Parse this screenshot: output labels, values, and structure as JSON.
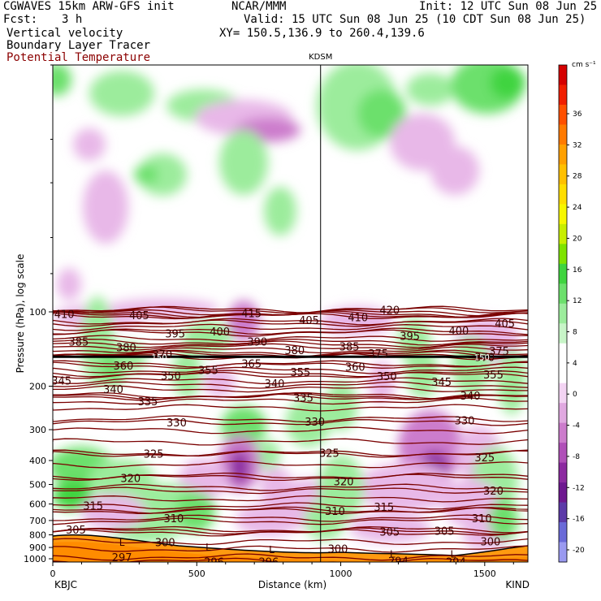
{
  "header": {
    "model": "CGWAVES 15km ARW-GFS init",
    "org": "NCAR/MMM",
    "init": "Init: 12 UTC Sun 08 Jun 25",
    "fcst_label": "Fcst:",
    "fcst_value": "3 h",
    "valid": "Valid: 15 UTC Sun 08 Jun 25 (10 CDT Sun 08 Jun 25)",
    "xy": "XY= 150.5,136.9 to 260.4,139.6",
    "fields": [
      {
        "label": "Vertical velocity",
        "color": "#000000"
      },
      {
        "label": "Boundary Layer Tracer",
        "color": "#000000"
      },
      {
        "label": "Potential Temperature",
        "color": "#8b0000"
      }
    ]
  },
  "chart_data": {
    "type": "heatmap",
    "title": "KDSM",
    "xlabel": "Distance (km)",
    "ylabel": "Pressure (hPa), log scale",
    "xlim": [
      0,
      1650
    ],
    "x_ticks": [
      0,
      500,
      1000,
      1500
    ],
    "x_tick_labels": [
      "0",
      "500",
      "1000",
      "1500"
    ],
    "y_ticks": [
      100,
      200,
      300,
      400,
      500,
      600,
      700,
      800,
      900,
      1000
    ],
    "y_tick_labels": [
      "100",
      "200",
      "300",
      "400",
      "500",
      "600",
      "700",
      "800",
      "900",
      "1000"
    ],
    "y_scale": "log",
    "left_endpoint": "KBJC",
    "right_endpoint": "KIND",
    "marker_x": 930,
    "colorbar": {
      "units": "cm s⁻¹",
      "ticks": [
        36,
        32,
        28,
        24,
        20,
        16,
        12,
        8,
        4,
        0,
        -4,
        -8,
        -12,
        -16,
        -20
      ],
      "tick_labels": [
        "36",
        "32",
        "28",
        "24",
        "20",
        "16",
        "12",
        "8",
        "4",
        "0",
        "-4",
        "-8",
        "-12",
        "-16",
        "-20"
      ],
      "colors": [
        "#d50000",
        "#f01e00",
        "#ff5000",
        "#ff7a00",
        "#ffa000",
        "#ffc000",
        "#ffde00",
        "#f7f700",
        "#c8ee00",
        "#7ee300",
        "#3fd43f",
        "#6ce06c",
        "#9cec9c",
        "#c8f5c8",
        "#ffffff",
        "#ffffff",
        "#f3d4f3",
        "#e0a8e0",
        "#cc7ccc",
        "#b050b8",
        "#8c2aa0",
        "#6e1890",
        "#5c3aa8",
        "#6a6ad8",
        "#9a9af0"
      ],
      "legend_placement": "right"
    },
    "theta_contours": [
      {
        "value": 410,
        "labels": [
          [
            40,
            102
          ]
        ]
      },
      {
        "value": 405,
        "labels": [
          [
            300,
            103
          ],
          [
            890,
            108
          ],
          [
            1570,
            111
          ]
        ]
      },
      {
        "value": 415,
        "labels": [
          [
            690,
            101
          ]
        ]
      },
      {
        "value": 410,
        "labels": [
          [
            1060,
            105
          ]
        ]
      },
      {
        "value": 420,
        "labels": [
          [
            1170,
            98
          ]
        ]
      },
      {
        "value": 395,
        "labels": [
          [
            425,
            122
          ],
          [
            1240,
            125
          ]
        ]
      },
      {
        "value": 400,
        "labels": [
          [
            580,
            120
          ],
          [
            1410,
            119
          ]
        ]
      },
      {
        "value": 385,
        "labels": [
          [
            90,
            132
          ],
          [
            1030,
            138
          ]
        ]
      },
      {
        "value": 380,
        "labels": [
          [
            255,
            139
          ],
          [
            840,
            143
          ]
        ]
      },
      {
        "value": 390,
        "labels": [
          [
            710,
            132
          ]
        ]
      },
      {
        "value": 375,
        "labels": [
          [
            1130,
            147
          ],
          [
            1550,
            144
          ]
        ]
      },
      {
        "value": 370,
        "labels": [
          [
            380,
            148
          ],
          [
            1500,
            152
          ]
        ]
      },
      {
        "value": 365,
        "labels": [
          [
            690,
            162
          ]
        ]
      },
      {
        "value": 360,
        "labels": [
          [
            245,
            165
          ],
          [
            1050,
            167
          ]
        ]
      },
      {
        "value": 355,
        "labels": [
          [
            540,
            172
          ],
          [
            860,
            175
          ],
          [
            1530,
            179
          ]
        ]
      },
      {
        "value": 350,
        "labels": [
          [
            410,
            181
          ],
          [
            1160,
            182
          ]
        ]
      },
      {
        "value": 345,
        "labels": [
          [
            30,
            190
          ],
          [
            1350,
            192
          ]
        ]
      },
      {
        "value": 340,
        "labels": [
          [
            210,
            205
          ],
          [
            770,
            195
          ],
          [
            1450,
            218
          ]
        ]
      },
      {
        "value": 335,
        "labels": [
          [
            330,
            230
          ],
          [
            870,
            222
          ]
        ]
      },
      {
        "value": 330,
        "labels": [
          [
            430,
            280
          ],
          [
            910,
            278
          ],
          [
            1430,
            275
          ]
        ]
      },
      {
        "value": 325,
        "labels": [
          [
            350,
            375
          ],
          [
            960,
            372
          ],
          [
            1500,
            388
          ]
        ]
      },
      {
        "value": 320,
        "labels": [
          [
            270,
            470
          ],
          [
            1010,
            485
          ],
          [
            1530,
            530
          ]
        ]
      },
      {
        "value": 315,
        "labels": [
          [
            140,
            610
          ],
          [
            1150,
            615
          ]
        ]
      },
      {
        "value": 310,
        "labels": [
          [
            420,
            685
          ],
          [
            980,
            640
          ],
          [
            1490,
            685
          ]
        ]
      },
      {
        "value": 305,
        "labels": [
          [
            80,
            760
          ],
          [
            1170,
            775
          ],
          [
            1360,
            770
          ]
        ]
      },
      {
        "value": 300,
        "labels": [
          [
            390,
            855
          ],
          [
            990,
            910
          ],
          [
            1520,
            850
          ]
        ]
      },
      {
        "value": 297,
        "labels": [
          [
            240,
            985
          ]
        ]
      },
      {
        "value": 296,
        "labels": [
          [
            560,
            1025
          ],
          [
            750,
            1028
          ]
        ]
      },
      {
        "value": 294,
        "labels": [
          [
            1200,
            1020
          ],
          [
            1400,
            1025
          ]
        ]
      }
    ],
    "annotations": [
      {
        "text": "150",
        "x": 370,
        "p": 152
      },
      {
        "text": "150",
        "x": 1490,
        "p": 152
      },
      {
        "text": "L",
        "x": 240,
        "p": 860
      },
      {
        "text": "L",
        "x": 540,
        "p": 900
      },
      {
        "text": "L",
        "x": 760,
        "p": 920
      },
      {
        "text": "L",
        "x": 1180,
        "p": 960
      },
      {
        "text": "L",
        "x": 1390,
        "p": 960
      }
    ],
    "tropopause_p": 152
  }
}
